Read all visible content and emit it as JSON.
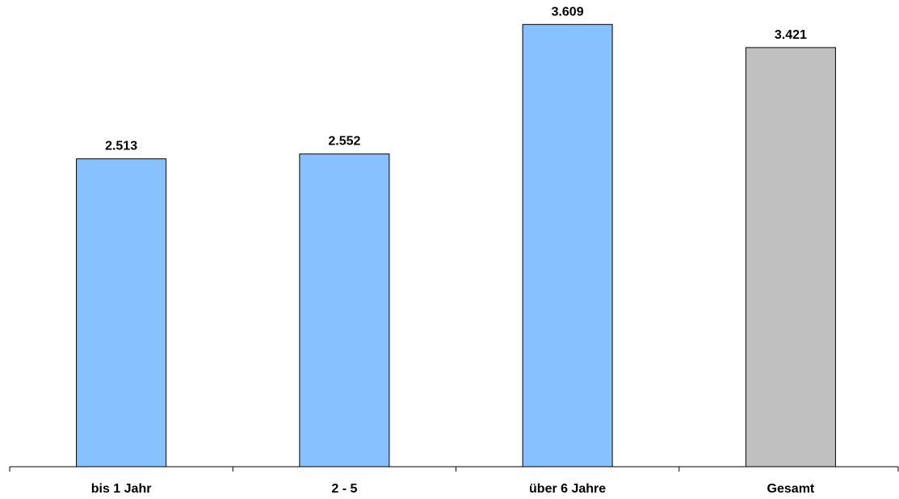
{
  "chart_data": {
    "type": "bar",
    "categories": [
      "bis 1 Jahr",
      "2 - 5",
      "über 6 Jahre",
      "Gesamt"
    ],
    "values": [
      2513,
      2552,
      3609,
      3421
    ],
    "value_labels": [
      "2.513",
      "2.552",
      "3.609",
      "3.421"
    ],
    "title": "",
    "xlabel": "",
    "ylabel": "",
    "ylim": [
      0,
      3809
    ],
    "grid": false,
    "legend": "none",
    "bar_colors": [
      "#87c1ff",
      "#87c1ff",
      "#87c1ff",
      "#c0c0c0"
    ]
  }
}
